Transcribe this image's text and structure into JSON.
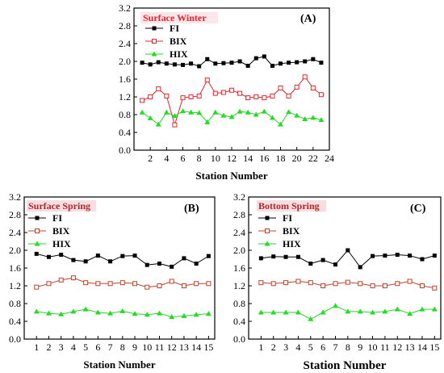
{
  "chart_data": [
    {
      "type": "line",
      "panel_label": "(A)",
      "title": "Surface Winter",
      "title_color": "#e8262b",
      "xlabel": "Station Number",
      "ylabel": "",
      "xlim": [
        0,
        24
      ],
      "ylim": [
        0.0,
        3.2
      ],
      "x_ticks": [
        "2",
        "4",
        "6",
        "8",
        "10",
        "12",
        "14",
        "16",
        "18",
        "20",
        "22",
        "24"
      ],
      "y_ticks": [
        "0.0",
        "0.4",
        "0.8",
        "1.2",
        "1.6",
        "2.0",
        "2.4",
        "2.8",
        "3.2"
      ],
      "x": [
        1,
        2,
        3,
        4,
        5,
        6,
        7,
        8,
        9,
        10,
        11,
        12,
        13,
        14,
        15,
        16,
        17,
        18,
        19,
        20,
        21,
        22,
        23
      ],
      "legend_position": "top-left",
      "series": [
        {
          "name": "FI",
          "color": "#000000",
          "marker": "square-filled",
          "values": [
            1.97,
            1.93,
            1.98,
            1.95,
            1.93,
            1.92,
            1.95,
            1.89,
            2.05,
            1.95,
            1.96,
            1.97,
            2.0,
            1.9,
            2.07,
            2.11,
            1.9,
            1.95,
            1.97,
            1.98,
            2.0,
            2.05,
            1.97
          ]
        },
        {
          "name": "BIX",
          "color": "#e8262b",
          "marker": "square-open",
          "values": [
            1.12,
            1.2,
            1.38,
            1.22,
            0.57,
            1.18,
            1.2,
            1.22,
            1.58,
            1.28,
            1.3,
            1.35,
            1.28,
            1.18,
            1.2,
            1.18,
            1.22,
            1.4,
            1.22,
            1.42,
            1.65,
            1.4,
            1.25
          ]
        },
        {
          "name": "HIX",
          "color": "#22dd22",
          "marker": "triangle-filled",
          "values": [
            0.85,
            0.72,
            0.58,
            0.85,
            0.77,
            0.88,
            0.85,
            0.84,
            0.63,
            0.85,
            0.78,
            0.75,
            0.87,
            0.85,
            0.8,
            0.87,
            0.73,
            0.58,
            0.86,
            0.78,
            0.7,
            0.73,
            0.68
          ]
        }
      ]
    },
    {
      "type": "line",
      "panel_label": "(B)",
      "title": "Surface Spring",
      "title_color": "#b5262b",
      "xlabel": "Station Number",
      "ylabel": "",
      "xlim": [
        0,
        15.5
      ],
      "ylim": [
        0.0,
        3.2
      ],
      "x_ticks": [
        "1",
        "2",
        "3",
        "4",
        "5",
        "6",
        "7",
        "8",
        "9",
        "10",
        "11",
        "12",
        "13",
        "14",
        "15"
      ],
      "y_ticks": [
        "0.0",
        "0.4",
        "0.8",
        "1.2",
        "1.6",
        "2.0",
        "2.4",
        "2.8",
        "3.2"
      ],
      "x": [
        1,
        2,
        3,
        4,
        5,
        6,
        7,
        8,
        9,
        10,
        11,
        12,
        13,
        14,
        15
      ],
      "legend_position": "top-left",
      "series": [
        {
          "name": "FI",
          "color": "#000000",
          "marker": "square-filled",
          "values": [
            1.92,
            1.85,
            1.9,
            1.78,
            1.75,
            1.88,
            1.75,
            1.87,
            1.88,
            1.67,
            1.7,
            1.63,
            1.82,
            1.7,
            1.87
          ]
        },
        {
          "name": "BIX",
          "color": "#c0442b",
          "marker": "square-open",
          "values": [
            1.17,
            1.25,
            1.33,
            1.38,
            1.27,
            1.25,
            1.25,
            1.27,
            1.25,
            1.17,
            1.2,
            1.3,
            1.2,
            1.25,
            1.25
          ]
        },
        {
          "name": "HIX",
          "color": "#22dd22",
          "marker": "triangle-filled",
          "values": [
            0.62,
            0.58,
            0.56,
            0.62,
            0.67,
            0.6,
            0.58,
            0.63,
            0.57,
            0.55,
            0.58,
            0.5,
            0.52,
            0.55,
            0.57
          ]
        }
      ]
    },
    {
      "type": "line",
      "panel_label": "(C)",
      "title": "Bottom Spring",
      "title_color": "#b5262b",
      "xlabel": "Station Number",
      "ylabel": "",
      "xlim": [
        0,
        15.5
      ],
      "ylim": [
        0.0,
        3.2
      ],
      "x_ticks": [
        "1",
        "2",
        "3",
        "4",
        "5",
        "6",
        "7",
        "8",
        "9",
        "10",
        "11",
        "12",
        "13",
        "14",
        "15"
      ],
      "y_ticks": [
        "0.0",
        "0.4",
        "0.8",
        "1.2",
        "1.6",
        "2.0",
        "2.4",
        "2.8",
        "3.2"
      ],
      "x": [
        1,
        2,
        3,
        4,
        5,
        6,
        7,
        8,
        9,
        10,
        11,
        12,
        13,
        14,
        15
      ],
      "legend_position": "top-left",
      "series": [
        {
          "name": "FI",
          "color": "#000000",
          "marker": "square-filled",
          "values": [
            1.82,
            1.86,
            1.85,
            1.85,
            1.7,
            1.78,
            1.68,
            2.0,
            1.62,
            1.87,
            1.88,
            1.9,
            1.88,
            1.8,
            1.88
          ]
        },
        {
          "name": "BIX",
          "color": "#c0442b",
          "marker": "square-open",
          "values": [
            1.27,
            1.25,
            1.27,
            1.3,
            1.27,
            1.2,
            1.25,
            1.28,
            1.25,
            1.2,
            1.2,
            1.25,
            1.3,
            1.2,
            1.15
          ]
        },
        {
          "name": "HIX",
          "color": "#22dd22",
          "marker": "triangle-filled",
          "values": [
            0.6,
            0.6,
            0.6,
            0.6,
            0.45,
            0.6,
            0.75,
            0.62,
            0.62,
            0.6,
            0.62,
            0.67,
            0.57,
            0.67,
            0.67
          ]
        }
      ]
    }
  ]
}
